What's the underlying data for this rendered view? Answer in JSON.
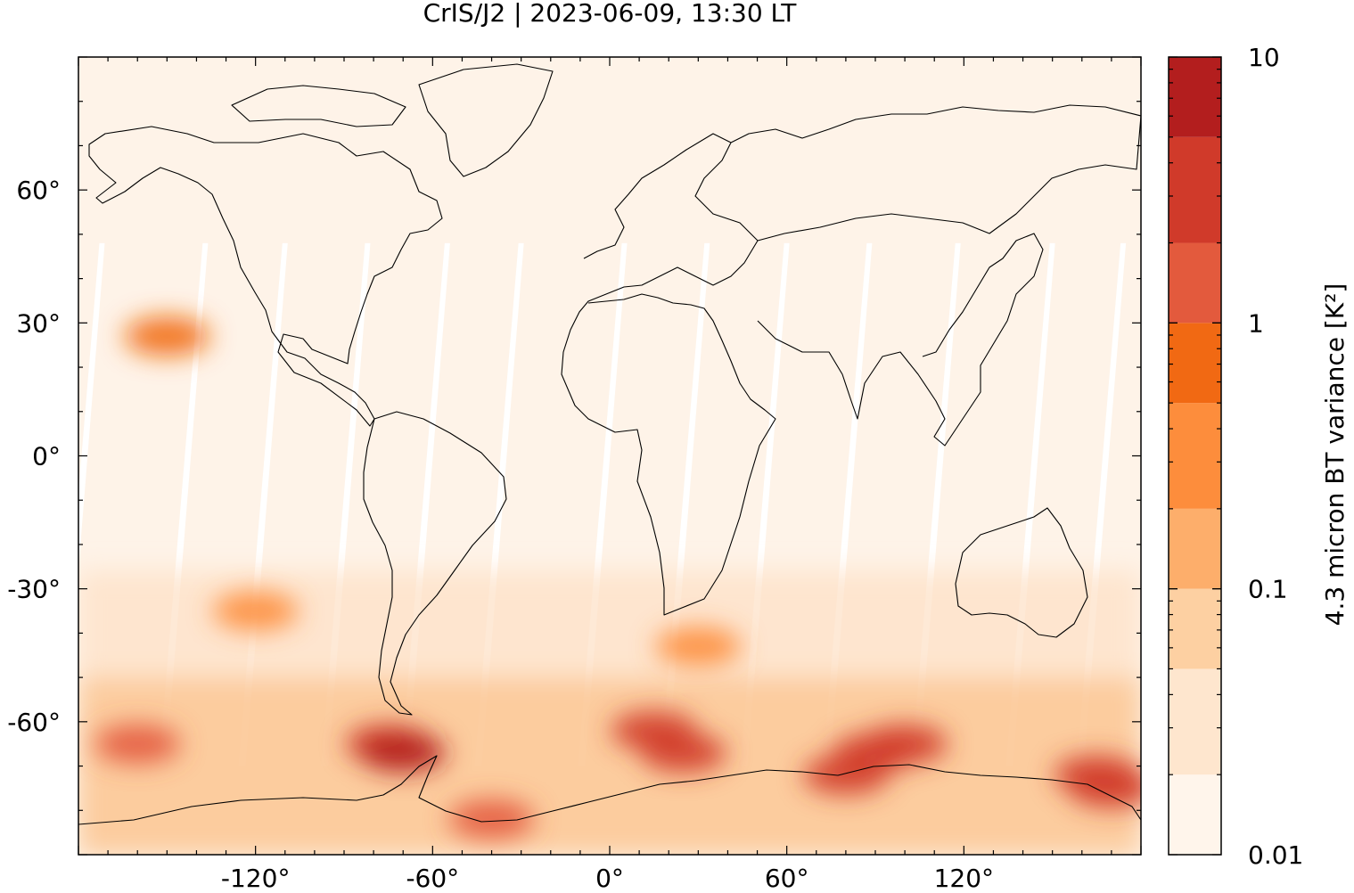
{
  "title": "CrIS/J2 | 2023-06-09, 13:30 LT",
  "chart_data": {
    "type": "heatmap",
    "title": "CrIS/J2 | 2023-06-09, 13:30 LT",
    "xlabel": "",
    "ylabel": "",
    "xlim": [
      -180,
      180
    ],
    "ylim": [
      -90,
      90
    ],
    "x_ticks": [
      -120,
      -60,
      0,
      60,
      120
    ],
    "x_tick_labels": [
      "-120°",
      "-60°",
      "0°",
      "60°",
      "120°"
    ],
    "y_ticks": [
      60,
      30,
      0,
      -30,
      -60
    ],
    "y_tick_labels": [
      "60°",
      "30°",
      "0°",
      "-30°",
      "-60°"
    ],
    "colorbar": {
      "label": "4.3 micron BT variance [K²]",
      "scale": "log",
      "range": [
        0.01,
        10
      ],
      "ticks": [
        0.01,
        0.1,
        1,
        10
      ],
      "tick_labels": [
        "0.01",
        "0.1",
        "1",
        "10"
      ],
      "levels": [
        0.01,
        0.02,
        0.05,
        0.1,
        0.2,
        0.5,
        1,
        2,
        5,
        10
      ],
      "colors": [
        "#fff5eb",
        "#fee6ce",
        "#fdd0a2",
        "#fdae6b",
        "#fd8d3c",
        "#f16913",
        "#e35a3d",
        "#d03a2a",
        "#b31e1e",
        "#8b0000"
      ]
    },
    "background_value_color": "#fef3e8",
    "data_gap_color": "#ffffff",
    "hotspots": [
      {
        "lon": 15,
        "lat": -62,
        "value": 2.5
      },
      {
        "lon": 25,
        "lat": -67,
        "value": 3
      },
      {
        "lon": -75,
        "lat": -65,
        "value": 4
      },
      {
        "lon": -70,
        "lat": -67,
        "value": 6
      },
      {
        "lon": 90,
        "lat": -67,
        "value": 3
      },
      {
        "lon": 100,
        "lat": -65,
        "value": 2
      },
      {
        "lon": 80,
        "lat": -72,
        "value": 2.5
      },
      {
        "lon": 165,
        "lat": -72,
        "value": 2.5
      },
      {
        "lon": 170,
        "lat": -75,
        "value": 3
      },
      {
        "lon": -160,
        "lat": -65,
        "value": 1
      },
      {
        "lon": -120,
        "lat": -35,
        "value": 0.3
      },
      {
        "lon": -40,
        "lat": -82,
        "value": 1.5
      },
      {
        "lon": 30,
        "lat": -43,
        "value": 0.4
      },
      {
        "lon": -150,
        "lat": 27,
        "value": 0.5
      }
    ]
  }
}
